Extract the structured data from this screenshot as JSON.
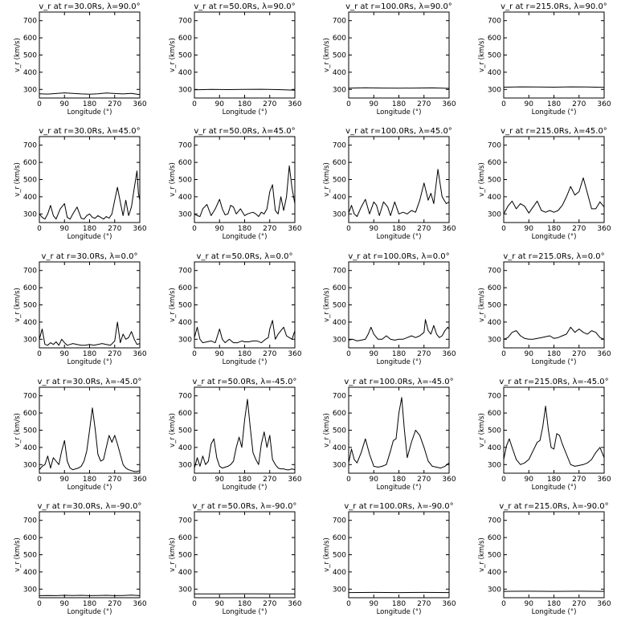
{
  "x_ticks": [
    "0",
    "90",
    "180",
    "270",
    "360"
  ],
  "y_ticks": [
    "300",
    "400",
    "500",
    "600",
    "700"
  ],
  "xlabel": "Longitude (°)",
  "ylabel": "v_r (km/s)",
  "chart_data": [
    {
      "type": "line",
      "title": "v_r at r=30.0Rs, λ=90.0°",
      "xlabel": "Longitude (°)",
      "ylabel": "v_r (km/s)",
      "xlim": [
        0,
        360
      ],
      "ylim": [
        250,
        750
      ],
      "x": [
        0,
        30,
        60,
        90,
        120,
        150,
        180,
        210,
        240,
        270,
        300,
        330,
        360
      ],
      "values": [
        275,
        273,
        276,
        280,
        277,
        274,
        272,
        275,
        279,
        276,
        274,
        277,
        270
      ]
    },
    {
      "type": "line",
      "title": "v_r at r=50.0Rs, λ=90.0°",
      "xlabel": "Longitude (°)",
      "ylabel": "v_r (km/s)",
      "xlim": [
        0,
        360
      ],
      "ylim": [
        250,
        750
      ],
      "x": [
        0,
        60,
        120,
        180,
        240,
        300,
        360
      ],
      "values": [
        298,
        300,
        299,
        300,
        301,
        299,
        296
      ]
    },
    {
      "type": "line",
      "title": "v_r at r=100.0Rs, λ=90.0°",
      "xlabel": "Longitude (°)",
      "ylabel": "v_r (km/s)",
      "xlim": [
        0,
        360
      ],
      "ylim": [
        250,
        750
      ],
      "x": [
        0,
        60,
        120,
        180,
        240,
        300,
        360
      ],
      "values": [
        307,
        310,
        308,
        307,
        308,
        309,
        306
      ]
    },
    {
      "type": "line",
      "title": "v_r at r=215.0Rs, λ=90.0°",
      "xlabel": "Longitude (°)",
      "ylabel": "v_r (km/s)",
      "xlim": [
        0,
        360
      ],
      "ylim": [
        250,
        750
      ],
      "x": [
        0,
        60,
        120,
        180,
        240,
        300,
        360
      ],
      "values": [
        313,
        315,
        314,
        313,
        315,
        314,
        312
      ]
    },
    {
      "type": "line",
      "title": "v_r at r=30.0Rs, λ=45.0°",
      "xlabel": "Longitude (°)",
      "ylabel": "v_r (km/s)",
      "xlim": [
        0,
        360
      ],
      "ylim": [
        250,
        750
      ],
      "x": [
        0,
        10,
        20,
        30,
        40,
        50,
        60,
        75,
        90,
        100,
        110,
        120,
        135,
        150,
        160,
        170,
        180,
        190,
        200,
        210,
        220,
        230,
        240,
        250,
        260,
        270,
        280,
        290,
        300,
        310,
        320,
        330,
        340,
        350,
        355,
        360
      ],
      "values": [
        300,
        280,
        270,
        300,
        350,
        290,
        270,
        330,
        360,
        280,
        270,
        300,
        340,
        275,
        270,
        290,
        300,
        280,
        275,
        290,
        280,
        270,
        285,
        275,
        300,
        380,
        455,
        370,
        290,
        380,
        290,
        340,
        450,
        550,
        420,
        380
      ]
    },
    {
      "type": "line",
      "title": "v_r at r=50.0Rs, λ=45.0°",
      "xlabel": "Longitude (°)",
      "ylabel": "v_r (km/s)",
      "xlim": [
        0,
        360
      ],
      "ylim": [
        250,
        750
      ],
      "x": [
        0,
        10,
        20,
        30,
        45,
        60,
        75,
        90,
        100,
        110,
        120,
        130,
        140,
        150,
        165,
        180,
        190,
        200,
        210,
        220,
        230,
        240,
        250,
        260,
        270,
        280,
        290,
        300,
        310,
        320,
        330,
        340,
        350,
        360
      ],
      "values": [
        300,
        290,
        285,
        330,
        355,
        290,
        330,
        385,
        330,
        295,
        300,
        350,
        340,
        300,
        330,
        290,
        300,
        305,
        310,
        300,
        285,
        310,
        300,
        330,
        430,
        470,
        320,
        300,
        400,
        320,
        400,
        580,
        450,
        360
      ]
    },
    {
      "type": "line",
      "title": "v_r at r=100.0Rs, λ=45.0°",
      "xlabel": "Longitude (°)",
      "ylabel": "v_r (km/s)",
      "xlim": [
        0,
        360
      ],
      "ylim": [
        250,
        750
      ],
      "x": [
        0,
        10,
        20,
        30,
        45,
        60,
        75,
        90,
        100,
        110,
        125,
        140,
        150,
        165,
        180,
        195,
        210,
        225,
        240,
        255,
        270,
        285,
        295,
        305,
        320,
        335,
        350,
        360
      ],
      "values": [
        305,
        350,
        300,
        285,
        340,
        385,
        300,
        370,
        350,
        290,
        370,
        340,
        290,
        370,
        300,
        310,
        300,
        320,
        310,
        380,
        480,
        380,
        420,
        360,
        560,
        400,
        360,
        370
      ]
    },
    {
      "type": "line",
      "title": "v_r at r=215.0Rs, λ=45.0°",
      "xlabel": "Longitude (°)",
      "ylabel": "v_r (km/s)",
      "xlim": [
        0,
        360
      ],
      "ylim": [
        250,
        750
      ],
      "x": [
        0,
        15,
        30,
        45,
        60,
        75,
        90,
        105,
        120,
        135,
        150,
        165,
        180,
        195,
        210,
        225,
        240,
        255,
        270,
        285,
        300,
        315,
        330,
        345,
        360
      ],
      "values": [
        300,
        345,
        375,
        330,
        360,
        345,
        305,
        340,
        375,
        320,
        310,
        320,
        310,
        320,
        350,
        400,
        460,
        410,
        430,
        510,
        420,
        330,
        330,
        370,
        340
      ]
    },
    {
      "type": "line",
      "title": "v_r at r=30.0Rs, λ=0.0°",
      "xlabel": "Longitude (°)",
      "ylabel": "v_r (km/s)",
      "xlim": [
        0,
        360
      ],
      "ylim": [
        250,
        750
      ],
      "x": [
        0,
        10,
        20,
        30,
        40,
        50,
        60,
        70,
        80,
        90,
        100,
        110,
        120,
        135,
        150,
        165,
        180,
        195,
        210,
        225,
        240,
        255,
        270,
        280,
        290,
        300,
        310,
        320,
        330,
        340,
        350,
        360
      ],
      "values": [
        300,
        360,
        270,
        265,
        280,
        270,
        285,
        265,
        300,
        280,
        265,
        270,
        275,
        270,
        265,
        265,
        270,
        265,
        270,
        275,
        270,
        265,
        290,
        400,
        280,
        330,
        300,
        310,
        345,
        300,
        270,
        275
      ]
    },
    {
      "type": "line",
      "title": "v_r at r=50.0Rs, λ=0.0°",
      "xlabel": "Longitude (°)",
      "ylabel": "v_r (km/s)",
      "xlim": [
        0,
        360
      ],
      "ylim": [
        250,
        750
      ],
      "x": [
        0,
        10,
        20,
        30,
        45,
        60,
        75,
        90,
        100,
        110,
        125,
        140,
        155,
        170,
        180,
        195,
        210,
        225,
        240,
        255,
        265,
        270,
        280,
        290,
        300,
        310,
        320,
        330,
        340,
        350,
        360
      ],
      "values": [
        310,
        370,
        300,
        280,
        285,
        290,
        280,
        360,
        300,
        280,
        300,
        280,
        280,
        290,
        285,
        285,
        290,
        290,
        280,
        300,
        310,
        360,
        410,
        300,
        330,
        350,
        370,
        320,
        310,
        300,
        350
      ]
    },
    {
      "type": "line",
      "title": "v_r at r=100.0Rs, λ=0.0°",
      "xlabel": "Longitude (°)",
      "ylabel": "v_r (km/s)",
      "xlim": [
        0,
        360
      ],
      "ylim": [
        250,
        750
      ],
      "x": [
        0,
        15,
        30,
        45,
        60,
        70,
        80,
        90,
        105,
        120,
        135,
        150,
        165,
        180,
        195,
        210,
        225,
        240,
        255,
        270,
        275,
        285,
        295,
        305,
        315,
        325,
        335,
        345,
        355,
        360
      ],
      "values": [
        295,
        300,
        290,
        295,
        300,
        330,
        370,
        330,
        300,
        300,
        320,
        300,
        295,
        300,
        300,
        310,
        320,
        310,
        320,
        340,
        415,
        350,
        330,
        380,
        330,
        310,
        320,
        350,
        370,
        360
      ]
    },
    {
      "type": "line",
      "title": "v_r at r=215.0Rs, λ=0.0°",
      "xlabel": "Longitude (°)",
      "ylabel": "v_r (km/s)",
      "xlim": [
        0,
        360
      ],
      "ylim": [
        250,
        750
      ],
      "x": [
        0,
        15,
        30,
        45,
        60,
        75,
        90,
        105,
        120,
        135,
        150,
        165,
        180,
        195,
        210,
        225,
        240,
        255,
        270,
        285,
        300,
        315,
        330,
        345,
        360
      ],
      "values": [
        300,
        310,
        340,
        350,
        320,
        305,
        300,
        300,
        305,
        310,
        315,
        320,
        305,
        310,
        320,
        330,
        370,
        340,
        360,
        340,
        330,
        350,
        340,
        310,
        300
      ]
    },
    {
      "type": "line",
      "title": "v_r at r=30.0Rs, λ=-45.0°",
      "xlabel": "Longitude (°)",
      "ylabel": "v_r (km/s)",
      "xlim": [
        0,
        360
      ],
      "ylim": [
        250,
        750
      ],
      "x": [
        0,
        10,
        20,
        30,
        40,
        50,
        60,
        70,
        80,
        90,
        100,
        110,
        120,
        130,
        140,
        150,
        160,
        170,
        180,
        190,
        200,
        210,
        220,
        230,
        240,
        250,
        260,
        270,
        280,
        290,
        300,
        310,
        320,
        330,
        340,
        350,
        360
      ],
      "values": [
        270,
        290,
        300,
        350,
        280,
        340,
        320,
        300,
        380,
        440,
        320,
        280,
        270,
        275,
        280,
        290,
        320,
        380,
        500,
        630,
        510,
        360,
        320,
        330,
        400,
        470,
        430,
        470,
        420,
        360,
        300,
        280,
        270,
        265,
        260,
        260,
        265
      ]
    },
    {
      "type": "line",
      "title": "v_r at r=50.0Rs, λ=-45.0°",
      "xlabel": "Longitude (°)",
      "ylabel": "v_r (km/s)",
      "xlim": [
        0,
        360
      ],
      "ylim": [
        250,
        750
      ],
      "x": [
        0,
        10,
        20,
        30,
        40,
        50,
        60,
        70,
        80,
        90,
        100,
        110,
        120,
        130,
        140,
        150,
        160,
        170,
        180,
        190,
        200,
        210,
        220,
        230,
        240,
        250,
        260,
        270,
        280,
        290,
        300,
        310,
        320,
        330,
        340,
        350,
        360
      ],
      "values": [
        280,
        340,
        290,
        350,
        300,
        320,
        420,
        450,
        340,
        290,
        280,
        285,
        290,
        300,
        320,
        400,
        460,
        400,
        560,
        680,
        520,
        370,
        330,
        300,
        420,
        490,
        400,
        470,
        330,
        300,
        280,
        275,
        275,
        270,
        270,
        275,
        270
      ]
    },
    {
      "type": "line",
      "title": "v_r at r=100.0Rs, λ=-45.0°",
      "xlabel": "Longitude (°)",
      "ylabel": "v_r (km/s)",
      "xlim": [
        0,
        360
      ],
      "ylim": [
        250,
        750
      ],
      "x": [
        0,
        10,
        20,
        30,
        45,
        60,
        75,
        90,
        105,
        120,
        135,
        150,
        160,
        170,
        180,
        190,
        200,
        210,
        225,
        240,
        255,
        270,
        285,
        300,
        315,
        330,
        345,
        360
      ],
      "values": [
        310,
        390,
        330,
        310,
        370,
        450,
        360,
        290,
        285,
        290,
        300,
        380,
        440,
        450,
        600,
        690,
        500,
        340,
        430,
        500,
        470,
        400,
        320,
        290,
        285,
        280,
        290,
        310
      ]
    },
    {
      "type": "line",
      "title": "v_r at r=215.0Rs, λ=-45.0°",
      "xlabel": "Longitude (°)",
      "ylabel": "v_r (km/s)",
      "xlim": [
        0,
        360
      ],
      "ylim": [
        250,
        750
      ],
      "x": [
        0,
        10,
        20,
        30,
        45,
        60,
        75,
        90,
        105,
        120,
        130,
        140,
        150,
        160,
        170,
        180,
        190,
        200,
        210,
        225,
        240,
        255,
        270,
        285,
        300,
        315,
        330,
        345,
        360
      ],
      "values": [
        330,
        410,
        450,
        400,
        330,
        300,
        310,
        330,
        380,
        430,
        440,
        520,
        640,
        500,
        400,
        390,
        480,
        470,
        420,
        360,
        300,
        290,
        295,
        300,
        310,
        330,
        370,
        400,
        340
      ]
    },
    {
      "type": "line",
      "title": "v_r at r=30.0Rs, λ=-90.0°",
      "xlabel": "Longitude (°)",
      "ylabel": "v_r (km/s)",
      "xlim": [
        0,
        360
      ],
      "ylim": [
        250,
        750
      ],
      "x": [
        0,
        30,
        60,
        90,
        120,
        150,
        180,
        210,
        240,
        270,
        300,
        330,
        360
      ],
      "values": [
        262,
        263,
        262,
        264,
        263,
        264,
        262,
        263,
        264,
        262,
        263,
        265,
        262
      ]
    },
    {
      "type": "line",
      "title": "v_r at r=50.0Rs, λ=-90.0°",
      "xlabel": "Longitude (°)",
      "ylabel": "v_r (km/s)",
      "xlim": [
        0,
        360
      ],
      "ylim": [
        250,
        750
      ],
      "x": [
        0,
        90,
        180,
        270,
        360
      ],
      "values": [
        272,
        272,
        273,
        272,
        272
      ]
    },
    {
      "type": "line",
      "title": "v_r at r=100.0Rs, λ=-90.0°",
      "xlabel": "Longitude (°)",
      "ylabel": "v_r (km/s)",
      "xlim": [
        0,
        360
      ],
      "ylim": [
        250,
        750
      ],
      "x": [
        0,
        90,
        180,
        270,
        360
      ],
      "values": [
        280,
        281,
        280,
        281,
        280
      ]
    },
    {
      "type": "line",
      "title": "v_r at r=215.0Rs, λ=-90.0°",
      "xlabel": "Longitude (°)",
      "ylabel": "v_r (km/s)",
      "xlim": [
        0,
        360
      ],
      "ylim": [
        250,
        750
      ],
      "x": [
        0,
        90,
        180,
        270,
        360
      ],
      "values": [
        287,
        288,
        287,
        288,
        287
      ]
    }
  ]
}
